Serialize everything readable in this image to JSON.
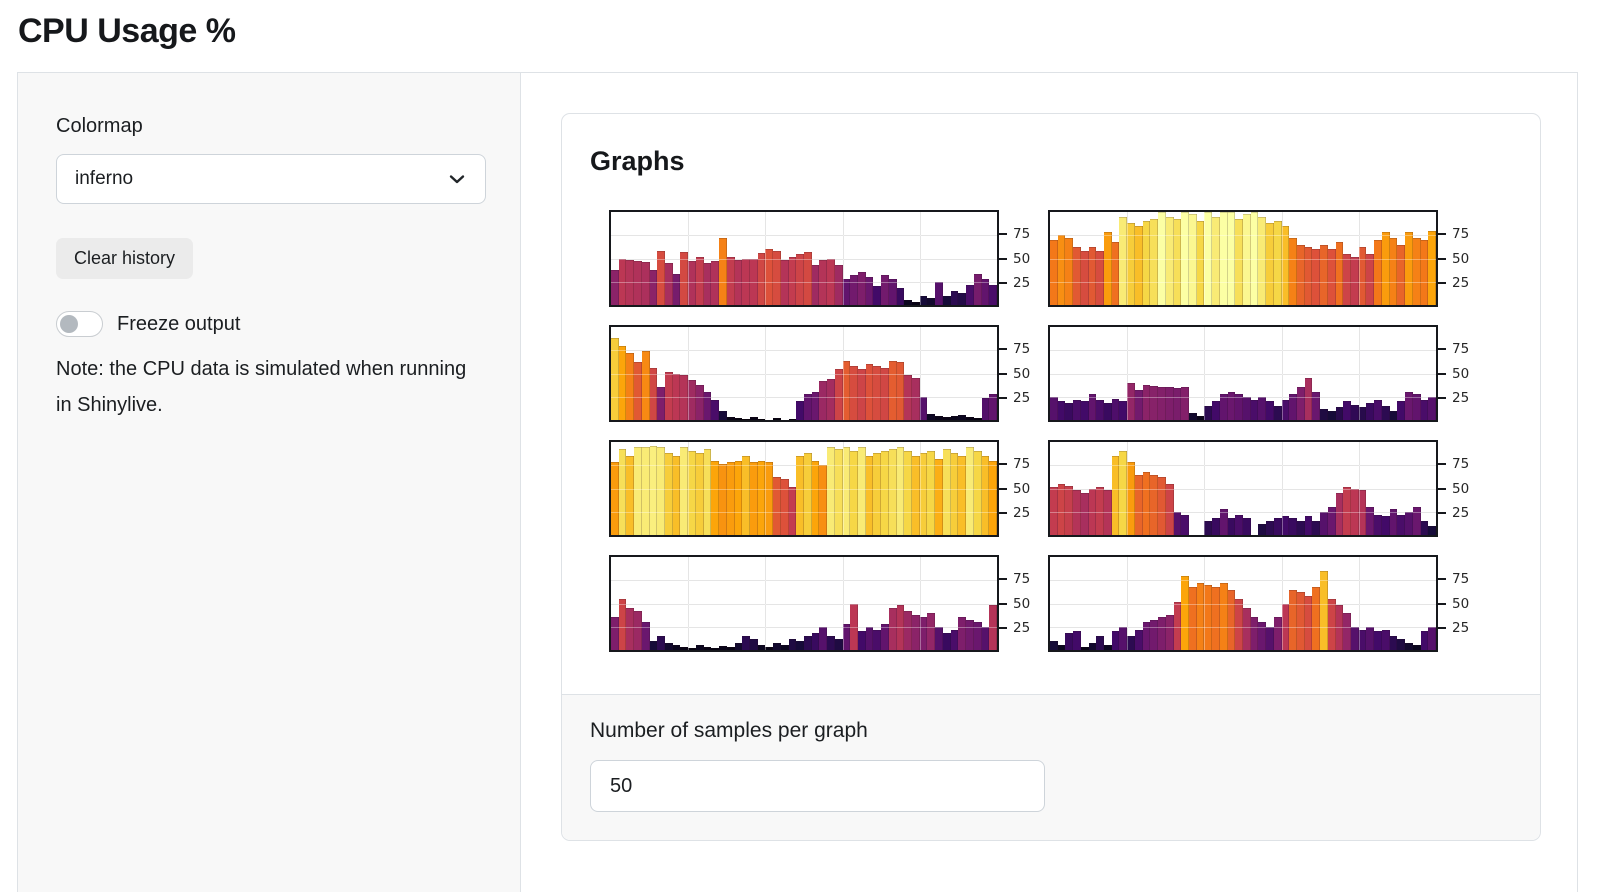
{
  "page": {
    "title": "CPU Usage %"
  },
  "sidebar": {
    "colormap_label": "Colormap",
    "colormap_value": "inferno",
    "clear_button": "Clear history",
    "freeze_label": "Freeze output",
    "freeze_state": "off",
    "note": "Note: the CPU data is simulated when running in Shinylive."
  },
  "card": {
    "title": "Graphs",
    "samples_label": "Number of samples per graph",
    "samples_value": "50"
  },
  "colors": {
    "sidebar_bg": "#f8f8f8",
    "card_border": "#dee2e6",
    "button_bg": "#ebebeb",
    "plot_border": "#16181c",
    "gridline": "#d8d8d8"
  },
  "chart_data": {
    "type": "bar",
    "colormap": "inferno",
    "ylim": [
      0,
      100
    ],
    "yticks": [
      25,
      50,
      75
    ],
    "xgrid_positions_pct": [
      20,
      40,
      60,
      80
    ],
    "grid": true,
    "legend": false,
    "layout": "2 columns x 4 rows, y tick labels on right side",
    "series": [
      {
        "name": "graph-1",
        "values": [
          38,
          50,
          48,
          47,
          46,
          38,
          58,
          45,
          33,
          57,
          47,
          52,
          45,
          47,
          72,
          52,
          48,
          50,
          50,
          56,
          60,
          58,
          48,
          52,
          55,
          57,
          43,
          48,
          50,
          43,
          28,
          32,
          35,
          30,
          20,
          32,
          28,
          18,
          5,
          3,
          10,
          8,
          25,
          10,
          15,
          13,
          22,
          33,
          28,
          22
        ]
      },
      {
        "name": "graph-2",
        "values": [
          70,
          75,
          72,
          62,
          58,
          62,
          58,
          78,
          68,
          95,
          88,
          85,
          90,
          92,
          100,
          95,
          92,
          100,
          98,
          90,
          100,
          95,
          100,
          100,
          92,
          98,
          100,
          95,
          88,
          90,
          85,
          72,
          65,
          62,
          60,
          65,
          60,
          68,
          55,
          52,
          62,
          55,
          70,
          78,
          72,
          65,
          78,
          72,
          70,
          80
        ]
      },
      {
        "name": "graph-3",
        "values": [
          88,
          80,
          72,
          62,
          74,
          56,
          35,
          52,
          50,
          48,
          43,
          38,
          30,
          22,
          10,
          3,
          2,
          1,
          3,
          1,
          0,
          2,
          0,
          1,
          20,
          28,
          30,
          42,
          44,
          55,
          63,
          58,
          55,
          60,
          58,
          56,
          63,
          62,
          48,
          45,
          25,
          6,
          4,
          3,
          4,
          5,
          3,
          2,
          24,
          28
        ]
      },
      {
        "name": "graph-4",
        "values": [
          25,
          20,
          18,
          22,
          20,
          28,
          22,
          18,
          23,
          20,
          40,
          32,
          38,
          37,
          36,
          35,
          34,
          36,
          8,
          4,
          15,
          20,
          28,
          30,
          28,
          25,
          22,
          25,
          20,
          15,
          22,
          28,
          35,
          45,
          30,
          12,
          10,
          14,
          20,
          16,
          14,
          18,
          22,
          15,
          10,
          20,
          30,
          28,
          22,
          25
        ]
      },
      {
        "name": "graph-5",
        "values": [
          78,
          92,
          85,
          95,
          95,
          96,
          95,
          88,
          85,
          95,
          90,
          88,
          92,
          80,
          76,
          78,
          80,
          85,
          78,
          80,
          78,
          62,
          60,
          52,
          85,
          88,
          80,
          75,
          95,
          92,
          95,
          90,
          95,
          85,
          88,
          90,
          92,
          95,
          90,
          85,
          88,
          90,
          82,
          92,
          88,
          85,
          95,
          90,
          85,
          80
        ]
      },
      {
        "name": "graph-6",
        "values": [
          52,
          55,
          53,
          48,
          45,
          50,
          52,
          48,
          85,
          90,
          78,
          65,
          68,
          65,
          62,
          55,
          25,
          22,
          0,
          0,
          15,
          18,
          28,
          18,
          22,
          18,
          0,
          12,
          15,
          18,
          20,
          18,
          15,
          20,
          15,
          25,
          30,
          45,
          52,
          50,
          48,
          30,
          22,
          20,
          28,
          22,
          25,
          30,
          15,
          10
        ]
      },
      {
        "name": "graph-7",
        "values": [
          35,
          55,
          45,
          42,
          30,
          10,
          15,
          8,
          5,
          3,
          2,
          5,
          3,
          2,
          4,
          3,
          8,
          15,
          12,
          5,
          3,
          8,
          5,
          12,
          10,
          15,
          18,
          25,
          15,
          12,
          28,
          50,
          20,
          25,
          22,
          28,
          45,
          48,
          42,
          38,
          35,
          40,
          25,
          18,
          22,
          35,
          32,
          30,
          25,
          48
        ]
      },
      {
        "name": "graph-8",
        "values": [
          10,
          5,
          18,
          20,
          3,
          8,
          15,
          5,
          20,
          25,
          15,
          22,
          30,
          32,
          35,
          38,
          52,
          80,
          68,
          72,
          70,
          68,
          72,
          65,
          55,
          45,
          35,
          30,
          25,
          35,
          50,
          65,
          62,
          58,
          68,
          85,
          55,
          48,
          40,
          25,
          22,
          25,
          20,
          22,
          15,
          12,
          8,
          5,
          20,
          25
        ]
      }
    ]
  }
}
